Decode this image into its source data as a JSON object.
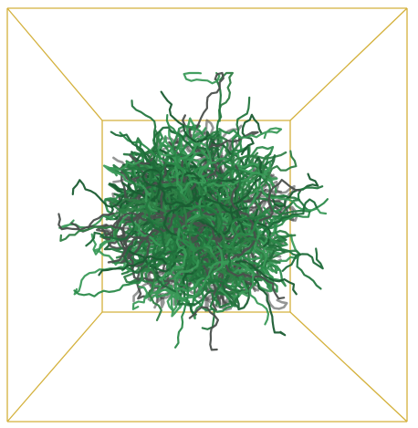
{
  "scene": {
    "background_color": "#ffffff",
    "box_edge_color": "#d4b13c",
    "strand_colors": [
      "#1f6b3a",
      "#24773f",
      "#2b8a4a",
      "#1a5c32",
      "#3a9a58",
      "#4a4f4c",
      "#2f7f45"
    ],
    "shadow_color": "#3c3f3e",
    "random_seed": 20240517
  }
}
